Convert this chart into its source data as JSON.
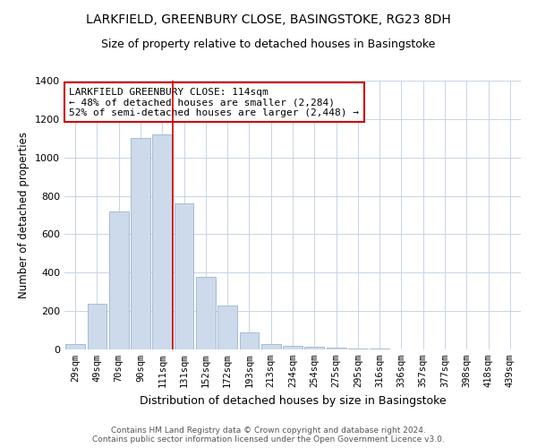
{
  "title": "LARKFIELD, GREENBURY CLOSE, BASINGSTOKE, RG23 8DH",
  "subtitle": "Size of property relative to detached houses in Basingstoke",
  "xlabel": "Distribution of detached houses by size in Basingstoke",
  "ylabel": "Number of detached properties",
  "bar_labels": [
    "29sqm",
    "49sqm",
    "70sqm",
    "90sqm",
    "111sqm",
    "131sqm",
    "152sqm",
    "172sqm",
    "193sqm",
    "213sqm",
    "234sqm",
    "254sqm",
    "275sqm",
    "295sqm",
    "316sqm",
    "336sqm",
    "357sqm",
    "377sqm",
    "398sqm",
    "418sqm",
    "439sqm"
  ],
  "bar_heights": [
    30,
    240,
    720,
    1100,
    1120,
    760,
    380,
    230,
    90,
    30,
    20,
    15,
    10,
    5,
    3,
    0,
    0,
    0,
    0,
    0,
    0
  ],
  "bar_color": "#ccdaeb",
  "bar_edge_color": "#9ab5cf",
  "vline_x_index": 4,
  "vline_color": "#cc0000",
  "annotation_text": "LARKFIELD GREENBURY CLOSE: 114sqm\n← 48% of detached houses are smaller (2,284)\n52% of semi-detached houses are larger (2,448) →",
  "annotation_box_color": "#ffffff",
  "annotation_box_edge_color": "#cc0000",
  "ylim": [
    0,
    1400
  ],
  "yticks": [
    0,
    200,
    400,
    600,
    800,
    1000,
    1200,
    1400
  ],
  "footer_line1": "Contains HM Land Registry data © Crown copyright and database right 2024.",
  "footer_line2": "Contains public sector information licensed under the Open Government Licence v3.0.",
  "background_color": "#ffffff",
  "grid_color": "#c8d4e4"
}
